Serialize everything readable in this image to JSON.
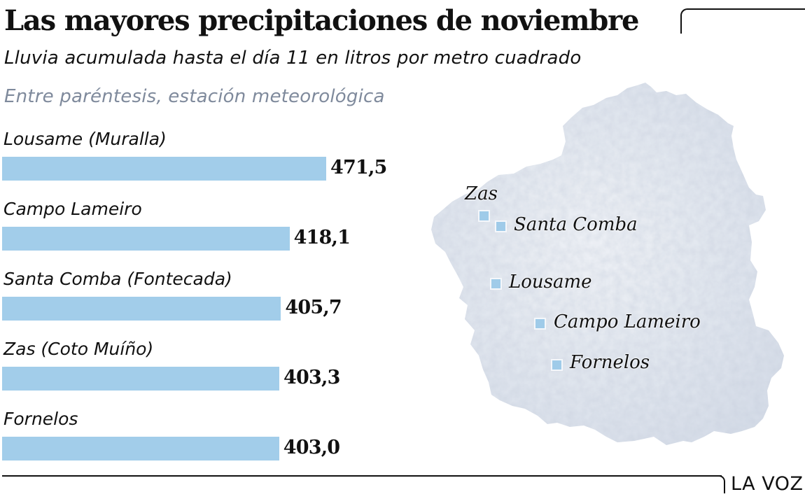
{
  "header": {
    "title": "Las mayores precipitaciones de noviembre",
    "subtitle": "Lluvia acumulada hasta el día 11 en litros por metro cuadrado",
    "note": "Entre paréntesis, estación meteorológica"
  },
  "colors": {
    "bar": "#a2cdea",
    "marker": "#9fcbe9",
    "map_fill": "#dde3ec",
    "note_text": "#7f8a9c"
  },
  "chart_data": {
    "type": "bar",
    "orientation": "horizontal",
    "title": "Las mayores precipitaciones de noviembre",
    "subtitle": "Lluvia acumulada hasta el día 11 en litros por metro cuadrado",
    "unit": "litros por metro cuadrado",
    "categories": [
      "Lousame (Muralla)",
      "Campo Lameiro",
      "Santa Comba (Fontecada)",
      "Zas (Coto Muíño)",
      "Fornelos"
    ],
    "values": [
      471.5,
      418.1,
      405.7,
      403.3,
      403.0
    ],
    "value_labels": [
      "471,5",
      "418,1",
      "405,7",
      "403,3",
      "403,0"
    ],
    "xlabel": "",
    "ylabel": "",
    "xlim": [
      0,
      471.5
    ],
    "grid": false,
    "legend": "none"
  },
  "map": {
    "region": "Galicia",
    "places": [
      {
        "name": "Zas",
        "label": "Zas",
        "label_position": "above"
      },
      {
        "name": "Santa Comba",
        "label": "Santa Comba",
        "label_position": "right"
      },
      {
        "name": "Lousame",
        "label": "Lousame",
        "label_position": "right"
      },
      {
        "name": "Campo Lameiro",
        "label": "Campo Lameiro",
        "label_position": "right"
      },
      {
        "name": "Fornelos",
        "label": "Fornelos",
        "label_position": "right"
      }
    ]
  },
  "footer": {
    "brand": "LA VOZ"
  }
}
